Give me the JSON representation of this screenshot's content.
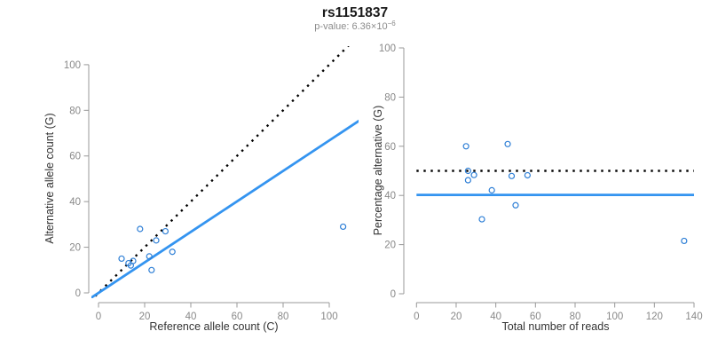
{
  "header": {
    "title": "rs1151837",
    "pvalue_prefix": "p-value: ",
    "pvalue_base": "6.36×10",
    "pvalue_exponent": "−6"
  },
  "colors": {
    "point_blue": "#2E7FD6",
    "line_blue": "#3494F0",
    "dotted_black": "#000000",
    "axis_gray": "#989898",
    "tick_label_gray": "#898989",
    "title_black": "#1A1A1A",
    "subtitle_gray": "#8C8C8C",
    "axis_title_dark": "#333333"
  },
  "chart_data": [
    {
      "type": "scatter",
      "name": "alt-vs-ref-counts",
      "xlabel": "Reference allele count (C)",
      "ylabel": "Alternative allele count (G)",
      "xlim": [
        0,
        113
      ],
      "ylim": [
        0,
        107
      ],
      "xticks": [
        0,
        20,
        40,
        60,
        80,
        100
      ],
      "yticks": [
        0,
        20,
        40,
        60,
        80,
        100
      ],
      "grid": false,
      "legend": false,
      "points": [
        [
          10,
          15
        ],
        [
          13,
          13
        ],
        [
          14,
          12
        ],
        [
          15,
          14
        ],
        [
          18,
          28
        ],
        [
          22,
          16
        ],
        [
          23,
          10
        ],
        [
          25,
          23
        ],
        [
          29,
          27
        ],
        [
          32,
          18
        ],
        [
          106,
          29
        ]
      ],
      "lines": [
        {
          "style": "dotted",
          "slope": 1,
          "intercept": 0
        },
        {
          "style": "solid",
          "slope": 0.668,
          "intercept": 0
        }
      ]
    },
    {
      "type": "scatter",
      "name": "pct-alt-vs-total-reads",
      "xlabel": "Total number of reads",
      "ylabel": "Percentage alternative (G)",
      "xlim": [
        0,
        140
      ],
      "ylim": [
        0,
        100
      ],
      "xticks": [
        0,
        20,
        40,
        60,
        80,
        100,
        120,
        140
      ],
      "yticks": [
        0,
        20,
        40,
        60,
        80,
        100
      ],
      "grid": false,
      "legend": false,
      "points": [
        [
          25,
          60
        ],
        [
          26,
          50
        ],
        [
          26,
          46.2
        ],
        [
          29,
          48.3
        ],
        [
          33,
          30.3
        ],
        [
          38,
          42.1
        ],
        [
          46,
          60.9
        ],
        [
          48,
          47.9
        ],
        [
          50,
          36
        ],
        [
          56,
          48.2
        ],
        [
          135,
          21.5
        ]
      ],
      "lines": [
        {
          "style": "dotted",
          "y": 50
        },
        {
          "style": "solid",
          "y": 40.2
        }
      ]
    }
  ]
}
